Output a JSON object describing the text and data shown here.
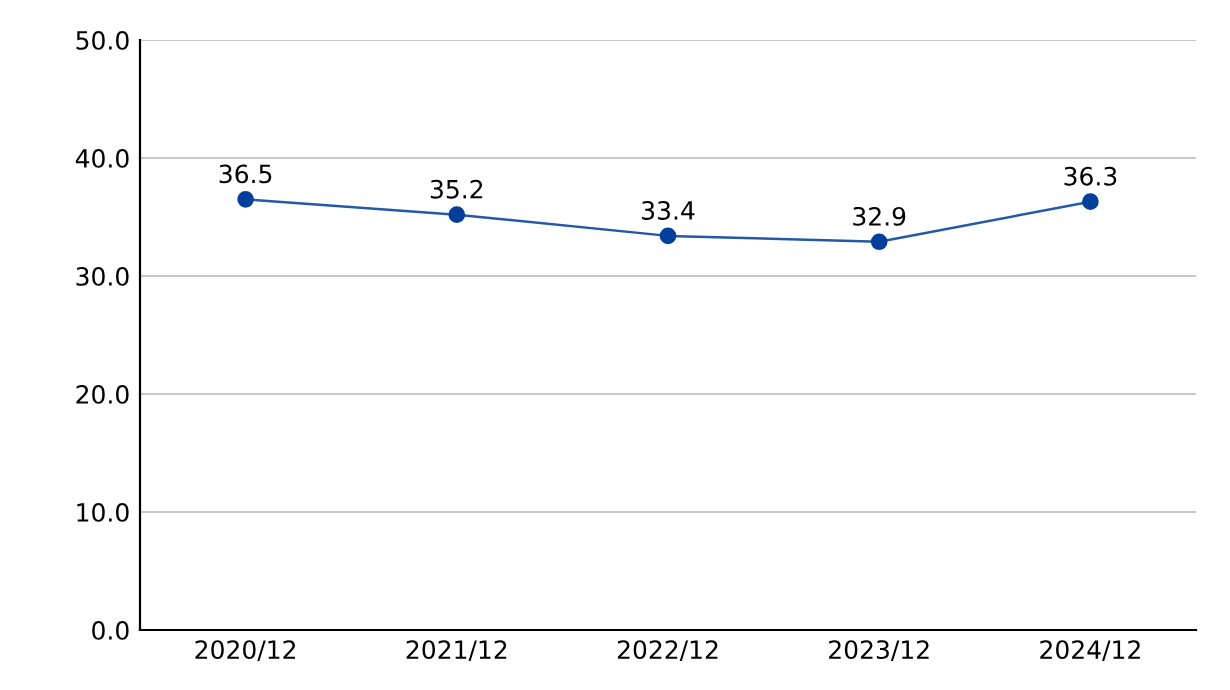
{
  "chart_data": {
    "type": "line",
    "categories": [
      "2020/12",
      "2021/12",
      "2022/12",
      "2023/12",
      "2024/12"
    ],
    "series": [
      {
        "color": "#2458a8",
        "values": [
          36.5,
          35.2,
          33.4,
          32.9,
          36.3
        ]
      }
    ],
    "ylim": [
      0,
      50
    ],
    "yticks": [
      {
        "value": 0,
        "label": "0.0"
      },
      {
        "value": 10,
        "label": "10.0"
      },
      {
        "value": 20,
        "label": "20.0"
      },
      {
        "value": 30,
        "label": "30.0"
      },
      {
        "value": 40,
        "label": "40.0"
      },
      {
        "value": 50,
        "label": "50.0"
      }
    ],
    "grid": "y",
    "marker": "circle",
    "line_style": "solid",
    "data_labels": true
  }
}
